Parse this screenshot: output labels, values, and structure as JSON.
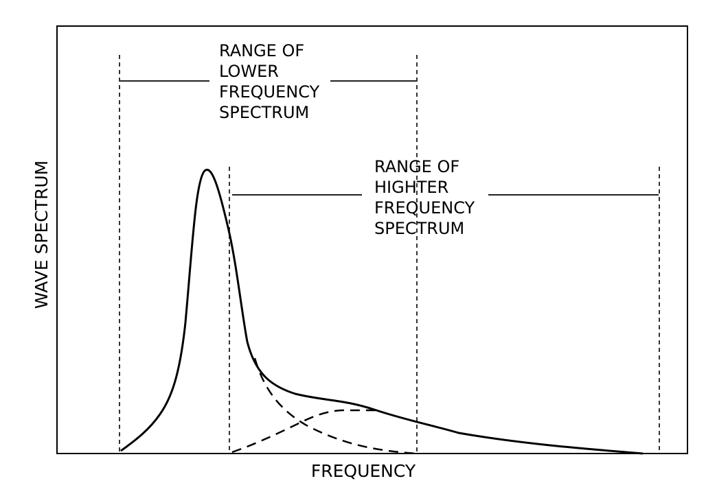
{
  "axes": {
    "x_label": "FREQUENCY",
    "y_label": "WAVE SPECTRUM"
  },
  "annotations": {
    "lower_range": {
      "lines": [
        "RANGE OF",
        "LOWER",
        "FREQUENCY",
        "SPECTRUM"
      ]
    },
    "higher_range": {
      "lines": [
        "RANGE OF",
        "HIGHTER",
        "FREQUENCY",
        "SPECTRUM"
      ]
    }
  },
  "colors": {
    "stroke": "#000000",
    "background": "#ffffff"
  }
}
